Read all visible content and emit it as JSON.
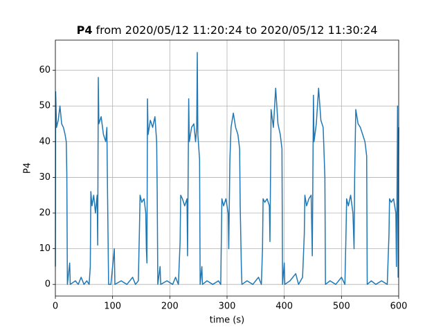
{
  "chart_data": {
    "type": "line",
    "title_bold": "P4",
    "title": "from 2020/05/12 11:20:24 to 2020/05/12 11:30:24",
    "xlabel": "time (s)",
    "ylabel": "P4",
    "color": "#1f77b4",
    "grid": true,
    "xlim": [
      0,
      600
    ],
    "ylim": [
      -3.26,
      68.46
    ],
    "xticks": [
      0,
      100,
      200,
      300,
      400,
      500,
      600
    ],
    "yticks": [
      0,
      10,
      20,
      30,
      40,
      50,
      60
    ],
    "x": [
      0,
      0.5,
      2,
      5,
      8,
      11,
      14,
      17,
      19,
      20,
      21,
      25,
      26,
      35,
      40,
      45,
      50,
      55,
      59,
      61,
      62,
      64,
      67,
      70,
      73,
      74,
      75,
      76,
      80,
      84,
      88,
      90,
      91,
      93,
      97,
      103,
      104,
      115,
      125,
      135,
      140,
      145,
      147,
      148,
      151,
      155,
      158,
      159,
      160,
      161,
      162,
      166,
      170,
      174,
      177,
      178,
      179,
      183,
      184,
      195,
      205,
      210,
      215,
      218,
      219,
      222,
      226,
      230,
      231,
      233,
      234,
      238,
      242,
      245,
      247,
      248,
      249,
      252,
      253,
      256,
      257,
      265,
      275,
      285,
      289,
      290,
      291,
      294,
      298,
      302,
      303,
      305,
      307,
      311,
      315,
      319,
      322,
      323,
      325,
      326,
      335,
      345,
      355,
      360,
      362,
      363,
      366,
      370,
      374,
      375,
      377,
      381,
      385,
      389,
      393,
      396,
      397,
      400,
      401,
      410,
      420,
      425,
      432,
      435,
      436,
      439,
      443,
      447,
      449,
      451,
      452,
      456,
      460,
      464,
      468,
      471,
      472,
      480,
      490,
      500,
      506,
      508,
      509,
      512,
      516,
      520,
      522,
      523,
      525,
      529,
      533,
      537,
      541,
      544,
      545,
      552,
      560,
      570,
      580,
      583,
      584,
      587,
      591,
      595,
      596,
      597,
      598,
      599,
      600
    ],
    "values": [
      5,
      54,
      44,
      46,
      50,
      45,
      44,
      42,
      40,
      31,
      0,
      6,
      0,
      1,
      0,
      2,
      0,
      1,
      0,
      5,
      26,
      22,
      25,
      20,
      25,
      11,
      58,
      45,
      47,
      42,
      40,
      44,
      28,
      0,
      0,
      10,
      0,
      1,
      0,
      2,
      0,
      1,
      16,
      25,
      23,
      24,
      20,
      10,
      6,
      52,
      42,
      46,
      44,
      47,
      40,
      25,
      0,
      5,
      0,
      1,
      0,
      2,
      0,
      12,
      25,
      24,
      22,
      24,
      8,
      52,
      40,
      44,
      45,
      40,
      44,
      65,
      42,
      35,
      0,
      5,
      0,
      1,
      0,
      1,
      0,
      12,
      24,
      22,
      24,
      20,
      10,
      35,
      44,
      48,
      44,
      42,
      38,
      22,
      5,
      0,
      1,
      0,
      2,
      0,
      10,
      24,
      23,
      24,
      22,
      12,
      49,
      44,
      55,
      45,
      42,
      38,
      0,
      6,
      0,
      1,
      3,
      0,
      2,
      14,
      25,
      22,
      24,
      25,
      8,
      53,
      40,
      45,
      55,
      46,
      44,
      30,
      0,
      1,
      0,
      2,
      0,
      15,
      24,
      22,
      25,
      20,
      10,
      30,
      49,
      45,
      44,
      42,
      40,
      36,
      0,
      1,
      0,
      1,
      0,
      14,
      24,
      23,
      24,
      20,
      5,
      24,
      50,
      2,
      44
    ]
  }
}
